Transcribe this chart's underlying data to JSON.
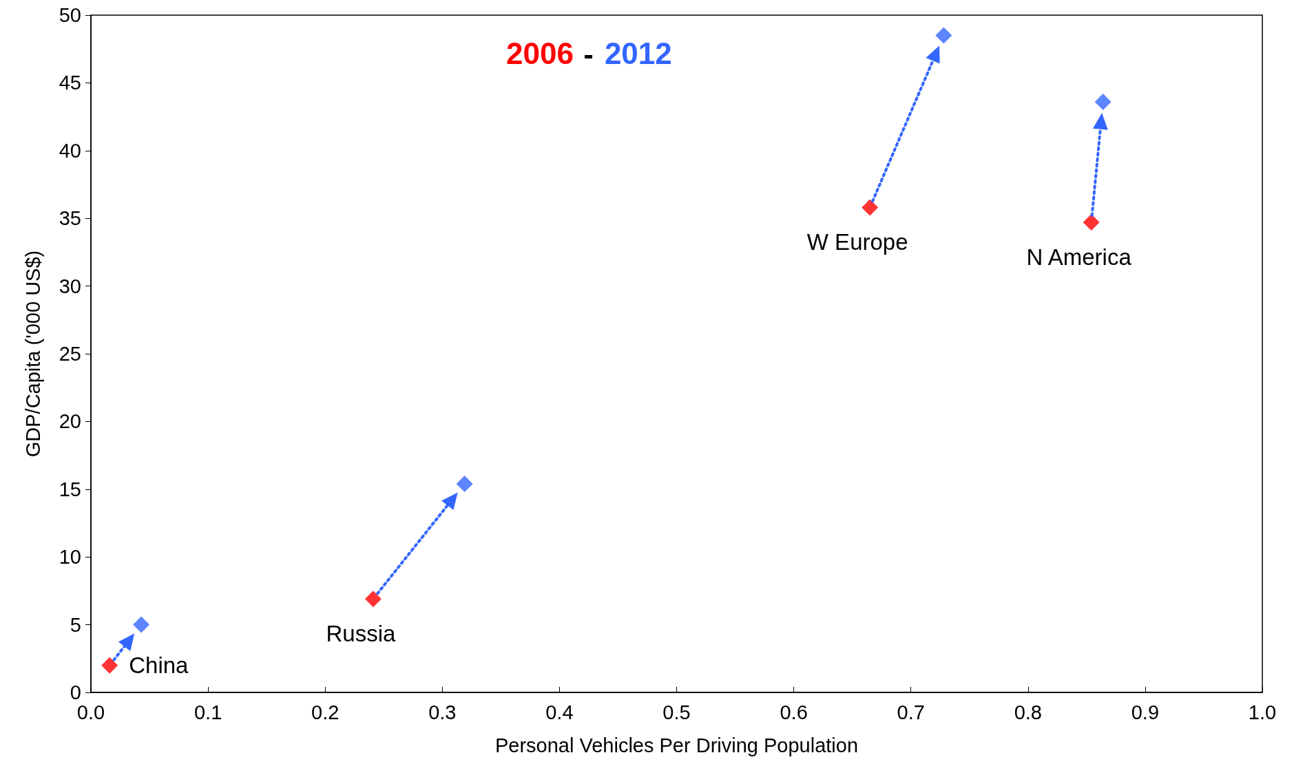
{
  "chart_data": {
    "type": "scatter",
    "xlabel": "Personal Vehicles Per Driving Population",
    "ylabel": "GDP/Capita ('000 US$)",
    "xlim": [
      0,
      1
    ],
    "xticks": [
      {
        "value": 0,
        "label": "0.0"
      },
      {
        "value": 0.1,
        "label": "0.1"
      },
      {
        "value": 0.2,
        "label": "0.2"
      },
      {
        "value": 0.3,
        "label": "0.3"
      },
      {
        "value": 0.4,
        "label": "0.4"
      },
      {
        "value": 0.5,
        "label": "0.5"
      },
      {
        "value": 0.6,
        "label": "0.6"
      },
      {
        "value": 0.7,
        "label": "0.7"
      },
      {
        "value": 0.8,
        "label": "0.8"
      },
      {
        "value": 0.9,
        "label": "0.9"
      },
      {
        "value": 1,
        "label": "1.0"
      }
    ],
    "ylim": [
      0,
      50
    ],
    "yticks": [
      0,
      5,
      10,
      15,
      20,
      25,
      30,
      35,
      40,
      45,
      50
    ],
    "grid": false,
    "legend": "top",
    "marker": "diamond",
    "series": [
      {
        "name": "2006",
        "color": "#ff0000",
        "x": [
          0.016,
          0.241,
          0.665,
          0.854
        ],
        "values": [
          2.0,
          6.9,
          35.8,
          34.7
        ]
      },
      {
        "name": "2012",
        "color": "#3366ff",
        "x": [
          0.043,
          0.319,
          0.728,
          0.864
        ],
        "values": [
          5.0,
          15.4,
          48.5,
          43.6
        ]
      }
    ],
    "annotations": [
      {
        "text": "China",
        "x": 0.016,
        "y": 2.0
      },
      {
        "text": "Russia",
        "x": 0.241,
        "y": 6.9
      },
      {
        "text": "W Europe",
        "x": 0.665,
        "y": 35.8
      },
      {
        "text": "N America",
        "x": 0.854,
        "y": 34.7
      }
    ]
  }
}
